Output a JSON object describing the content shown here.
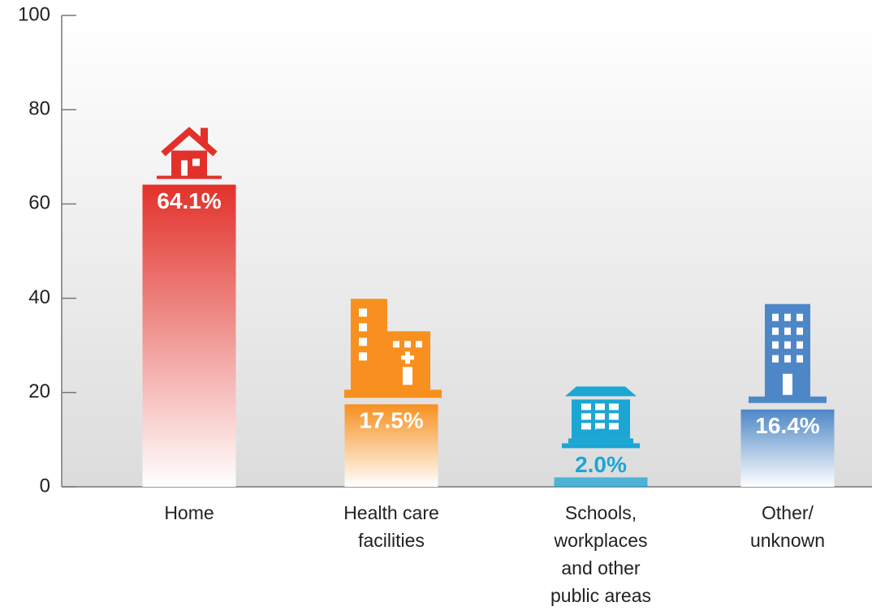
{
  "chart_data": {
    "type": "bar",
    "categories": [
      "Home",
      "Health care facilities",
      "Schools, workplaces and other public areas",
      "Other/ unknown"
    ],
    "values": [
      64.1,
      17.5,
      2.0,
      16.4
    ],
    "value_labels": [
      "64.1%",
      "17.5%",
      "2.0%",
      "16.4%"
    ],
    "colors": [
      "#e2312a",
      "#f7901e",
      "#1ba6d3",
      "#4d87c7"
    ],
    "ylim": [
      0,
      100
    ],
    "yticks": [
      0,
      20,
      40,
      60,
      80,
      100
    ]
  }
}
